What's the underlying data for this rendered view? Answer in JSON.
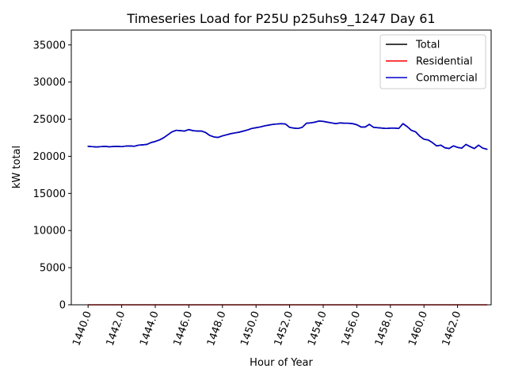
{
  "chart_data": {
    "type": "line",
    "title": "Timeseries Load for P25U p25uhs9_1247  Day 61",
    "xlabel": "Hour of Year",
    "ylabel": "kW total",
    "xlim": [
      1439.0,
      1464.0
    ],
    "ylim": [
      0,
      37000
    ],
    "xticks": [
      1440,
      1442,
      1444,
      1446,
      1448,
      1450,
      1452,
      1454,
      1456,
      1458,
      1460,
      1462
    ],
    "xtick_labels": [
      "1440.0",
      "1442.0",
      "1444.0",
      "1446.0",
      "1448.0",
      "1450.0",
      "1452.0",
      "1454.0",
      "1456.0",
      "1458.0",
      "1460.0",
      "1462.0"
    ],
    "yticks": [
      0,
      5000,
      10000,
      15000,
      20000,
      25000,
      30000,
      35000
    ],
    "ytick_labels": [
      "0",
      "5000",
      "10000",
      "15000",
      "20000",
      "25000",
      "30000",
      "35000"
    ],
    "legend_position": "top-right",
    "x": [
      1440.0,
      1440.25,
      1440.5,
      1440.75,
      1441.0,
      1441.25,
      1441.5,
      1441.75,
      1442.0,
      1442.25,
      1442.5,
      1442.75,
      1443.0,
      1443.25,
      1443.5,
      1443.75,
      1444.0,
      1444.25,
      1444.5,
      1444.75,
      1445.0,
      1445.25,
      1445.5,
      1445.75,
      1446.0,
      1446.25,
      1446.5,
      1446.75,
      1447.0,
      1447.25,
      1447.5,
      1447.75,
      1448.0,
      1448.25,
      1448.5,
      1448.75,
      1449.0,
      1449.25,
      1449.5,
      1449.75,
      1450.0,
      1450.25,
      1450.5,
      1450.75,
      1451.0,
      1451.25,
      1451.5,
      1451.75,
      1452.0,
      1452.25,
      1452.5,
      1452.75,
      1453.0,
      1453.25,
      1453.5,
      1453.75,
      1454.0,
      1454.25,
      1454.5,
      1454.75,
      1455.0,
      1455.25,
      1455.5,
      1455.75,
      1456.0,
      1456.25,
      1456.5,
      1456.75,
      1457.0,
      1457.25,
      1457.5,
      1457.75,
      1458.0,
      1458.25,
      1458.5,
      1458.75,
      1459.0,
      1459.25,
      1459.5,
      1459.75,
      1460.0,
      1460.25,
      1460.5,
      1460.75,
      1461.0,
      1461.25,
      1461.5,
      1461.75,
      1462.0,
      1462.25,
      1462.5,
      1462.75,
      1463.0,
      1463.25,
      1463.5,
      1463.75
    ],
    "series": [
      {
        "name": "Total",
        "color": "#000000",
        "values": [
          21350,
          21300,
          21250,
          21300,
          21350,
          21280,
          21320,
          21350,
          21300,
          21380,
          21400,
          21350,
          21500,
          21550,
          21600,
          21850,
          22000,
          22200,
          22500,
          22900,
          23300,
          23500,
          23450,
          23400,
          23600,
          23450,
          23400,
          23400,
          23200,
          22800,
          22600,
          22550,
          22750,
          22900,
          23050,
          23150,
          23250,
          23400,
          23550,
          23750,
          23850,
          23950,
          24100,
          24200,
          24300,
          24350,
          24400,
          24350,
          23900,
          23800,
          23750,
          23900,
          24450,
          24500,
          24600,
          24750,
          24700,
          24600,
          24500,
          24400,
          24500,
          24450,
          24450,
          24400,
          24250,
          23950,
          23950,
          24300,
          23900,
          23850,
          23800,
          23750,
          23800,
          23800,
          23750,
          24400,
          24000,
          23500,
          23300,
          22700,
          22300,
          22200,
          21850,
          21400,
          21500,
          21150,
          21050,
          21400,
          21200,
          21100,
          21600,
          21300,
          21050,
          21500,
          21100,
          20950
        ]
      },
      {
        "name": "Residential",
        "color": "#ff0000",
        "values": [
          0,
          0,
          0,
          0,
          0,
          0,
          0,
          0,
          0,
          0,
          0,
          0,
          0,
          0,
          0,
          0,
          0,
          0,
          0,
          0,
          0,
          0,
          0,
          0,
          0,
          0,
          0,
          0,
          0,
          0,
          0,
          0,
          0,
          0,
          0,
          0,
          0,
          0,
          0,
          0,
          0,
          0,
          0,
          0,
          0,
          0,
          0,
          0,
          0,
          0,
          0,
          0,
          0,
          0,
          0,
          0,
          0,
          0,
          0,
          0,
          0,
          0,
          0,
          0,
          0,
          0,
          0,
          0,
          0,
          0,
          0,
          0,
          0,
          0,
          0,
          0,
          0,
          0,
          0,
          0,
          0,
          0,
          0,
          0,
          0,
          0,
          0,
          0,
          0,
          0,
          0,
          0,
          0,
          0,
          0,
          0
        ]
      },
      {
        "name": "Commercial",
        "color": "#0000cc",
        "values": [
          21350,
          21300,
          21250,
          21300,
          21350,
          21280,
          21320,
          21350,
          21300,
          21380,
          21400,
          21350,
          21500,
          21550,
          21600,
          21850,
          22000,
          22200,
          22500,
          22900,
          23300,
          23500,
          23450,
          23400,
          23600,
          23450,
          23400,
          23400,
          23200,
          22800,
          22600,
          22550,
          22750,
          22900,
          23050,
          23150,
          23250,
          23400,
          23550,
          23750,
          23850,
          23950,
          24100,
          24200,
          24300,
          24350,
          24400,
          24350,
          23900,
          23800,
          23750,
          23900,
          24450,
          24500,
          24600,
          24750,
          24700,
          24600,
          24500,
          24400,
          24500,
          24450,
          24450,
          24400,
          24250,
          23950,
          23950,
          24300,
          23900,
          23850,
          23800,
          23750,
          23800,
          23800,
          23750,
          24400,
          24000,
          23500,
          23300,
          22700,
          22300,
          22200,
          21850,
          21400,
          21500,
          21150,
          21050,
          21400,
          21200,
          21100,
          21600,
          21300,
          21050,
          21500,
          21100,
          20950
        ]
      }
    ]
  }
}
